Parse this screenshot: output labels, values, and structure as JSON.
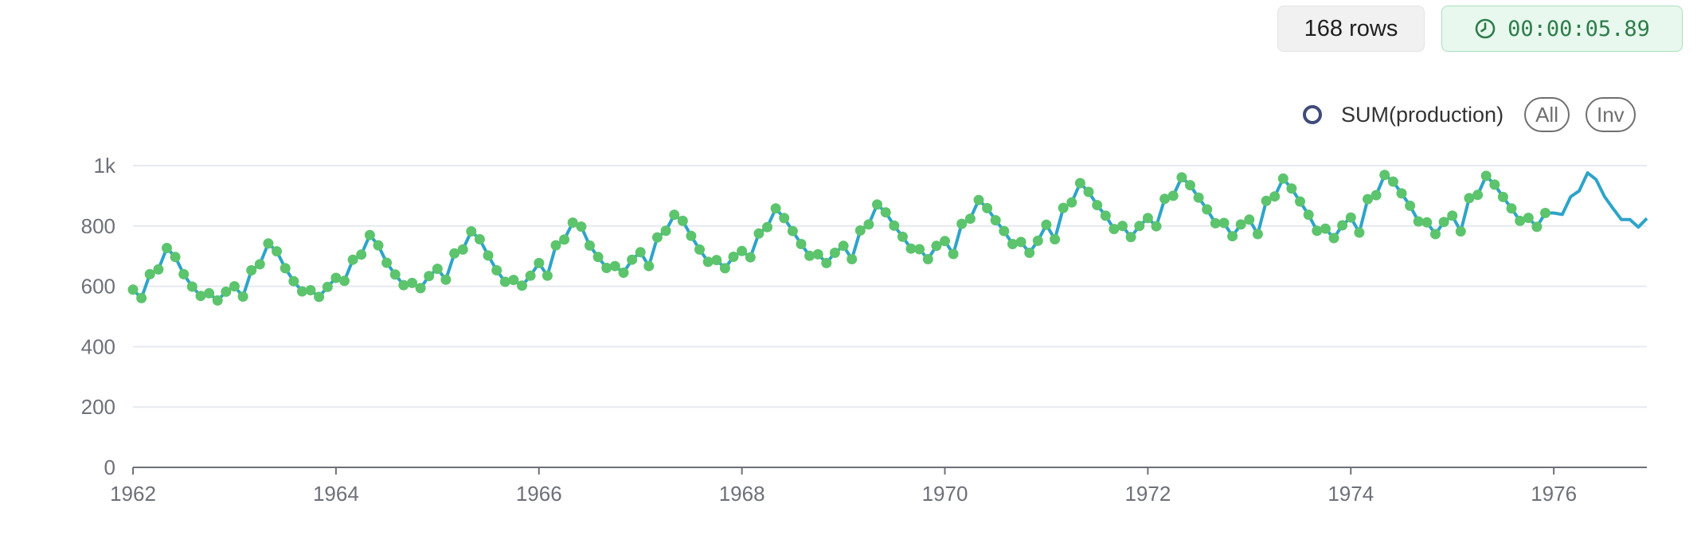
{
  "header": {
    "row_count": "168 rows",
    "elapsed": "00:00:05.89"
  },
  "legend": {
    "series_label": "SUM(production)",
    "all_label": "All",
    "inv_label": "Inv"
  },
  "colors": {
    "line": "#2ea4c8",
    "marker": "#5cc46c",
    "grid": "#e6e9f0",
    "axis": "#6e7079",
    "legend_marker": "#3f4b7a"
  },
  "chart_data": {
    "type": "line",
    "xlim": [
      1962,
      1976.917
    ],
    "ylim": [
      0,
      1000
    ],
    "y_ticks": [
      0,
      200,
      400,
      600,
      800,
      1000
    ],
    "y_tick_labels": [
      "0",
      "200",
      "400",
      "600",
      "800",
      "1k"
    ],
    "x_ticks": [
      1962,
      1964,
      1966,
      1968,
      1970,
      1972,
      1974,
      1976
    ],
    "x_tick_labels": [
      "1962",
      "1964",
      "1966",
      "1968",
      "1970",
      "1972",
      "1974",
      "1976"
    ],
    "grid": true,
    "legend_position": "top-right",
    "series": [
      {
        "name": "SUM(production)",
        "x_start": "1962-01",
        "frequency": "monthly",
        "values": [
          589,
          561,
          640,
          656,
          727,
          697,
          640,
          599,
          568,
          577,
          553,
          582,
          600,
          566,
          653,
          673,
          742,
          716,
          660,
          617,
          583,
          587,
          565,
          598,
          628,
          618,
          688,
          705,
          770,
          736,
          678,
          639,
          604,
          611,
          594,
          634,
          658,
          622,
          709,
          722,
          782,
          756,
          702,
          653,
          615,
          621,
          602,
          635,
          677,
          635,
          736,
          755,
          811,
          798,
          735,
          697,
          661,
          667,
          645,
          688,
          713,
          667,
          762,
          784,
          837,
          817,
          767,
          722,
          681,
          687,
          660,
          698,
          717,
          696,
          775,
          796,
          858,
          826,
          783,
          740,
          701,
          706,
          677,
          711,
          734,
          690,
          785,
          805,
          871,
          845,
          801,
          764,
          725,
          723,
          690,
          734,
          750,
          707,
          807,
          824,
          886,
          859,
          819,
          783,
          740,
          747,
          711,
          751,
          804,
          756,
          860,
          878,
          942,
          913,
          869,
          834,
          790,
          800,
          763,
          800,
          826,
          799,
          890,
          900,
          961,
          935,
          894,
          855,
          809,
          810,
          766,
          805,
          821,
          773,
          883,
          898,
          957,
          924,
          881,
          837,
          784,
          791,
          760,
          802,
          828,
          778,
          889,
          902,
          969,
          947,
          908,
          867,
          815,
          812,
          773,
          813,
          834,
          782,
          892,
          903,
          966,
          937,
          896,
          858,
          817,
          827,
          797,
          843
        ],
        "markers_through": "1975-12"
      },
      {
        "name": "SUM(production)",
        "x_start": "1976-01",
        "frequency": "monthly",
        "values": [
          843,
          838,
          897,
          916,
          976,
          954,
          897,
          858,
          821,
          821,
          796,
          825
        ],
        "markers": false
      }
    ]
  }
}
